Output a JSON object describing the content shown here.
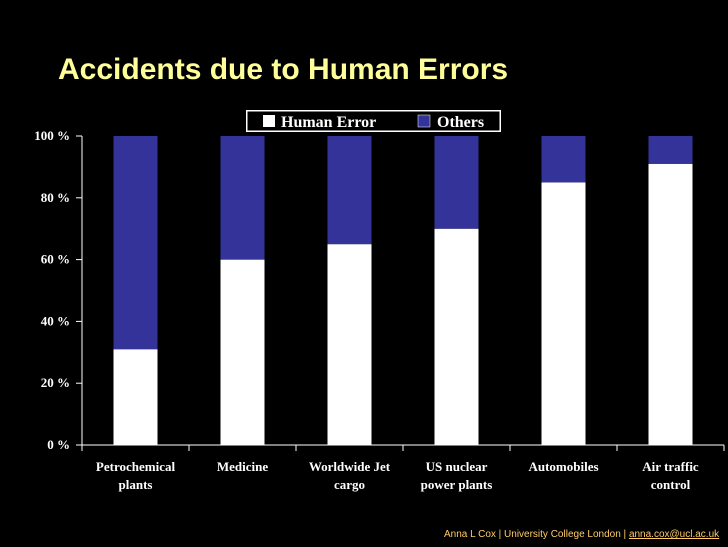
{
  "slide": {
    "title": "Accidents due to Human Errors",
    "footer_text": "Anna L Cox | University College London |",
    "footer_email": "anna.cox@ucl.ac.uk"
  },
  "chart_data": {
    "type": "bar",
    "stacked": true,
    "categories": [
      [
        "Petrochemical",
        "plants"
      ],
      [
        "Medicine"
      ],
      [
        "Worldwide Jet",
        "cargo"
      ],
      [
        "US nuclear",
        "power plants"
      ],
      [
        "Automobiles"
      ],
      [
        "Air traffic",
        "control"
      ]
    ],
    "series": [
      {
        "name": "Human Error",
        "values": [
          31,
          60,
          65,
          70,
          85,
          91
        ],
        "color": "#ffffff"
      },
      {
        "name": "Others",
        "values": [
          69,
          40,
          35,
          30,
          15,
          9
        ],
        "color": "#333399"
      }
    ],
    "yticks": [
      "0 %",
      "20 %",
      "40 %",
      "60 %",
      "80 %",
      "100 %"
    ],
    "ylim": [
      0,
      100
    ],
    "legend": "top",
    "grid": false
  }
}
